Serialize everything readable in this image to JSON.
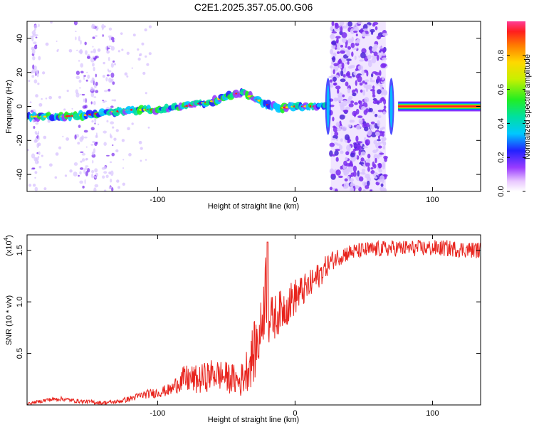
{
  "title": "C2E1.2025.357.05.00.G06",
  "colors": {
    "snr_line": "#e8231c",
    "noise": "#7b2cf0",
    "noise_light": "#d9c4ff"
  },
  "chart_data": [
    {
      "type": "heatmap",
      "name": "spectrogram",
      "xlabel": "Height of straight line (km)",
      "ylabel": "Frequency (Hz)",
      "xlim": [
        -195,
        135
      ],
      "ylim": [
        -50,
        50
      ],
      "x_ticks": [
        -100,
        0,
        100
      ],
      "x_tick_labels": [
        "-100",
        "0",
        "100"
      ],
      "y_ticks": [
        -40,
        -20,
        0,
        20,
        40
      ],
      "y_tick_labels": [
        "-40",
        "-20",
        "0",
        "20",
        "40"
      ],
      "colorbar": {
        "label": "Normalized spectral amplitude",
        "range": [
          0.0,
          1.0
        ],
        "ticks": [
          0.0,
          0.2,
          0.4,
          0.6,
          0.8
        ],
        "tick_labels": [
          "0.0",
          "0.2",
          "0.4",
          "0.6",
          "0.8"
        ],
        "colormap": "rainbow"
      },
      "ridge": [
        {
          "x": -195,
          "y": -6
        },
        {
          "x": -170,
          "y": -6
        },
        {
          "x": -150,
          "y": -5
        },
        {
          "x": -130,
          "y": -3
        },
        {
          "x": -120,
          "y": -2
        },
        {
          "x": -100,
          "y": -2
        },
        {
          "x": -80,
          "y": 0
        },
        {
          "x": -60,
          "y": 3
        },
        {
          "x": -45,
          "y": 7
        },
        {
          "x": -38,
          "y": 8
        },
        {
          "x": -30,
          "y": 5
        },
        {
          "x": -20,
          "y": 1
        },
        {
          "x": -10,
          "y": -1
        },
        {
          "x": 0,
          "y": 0
        },
        {
          "x": 10,
          "y": 0
        },
        {
          "x": 20,
          "y": 0
        },
        {
          "x": 70,
          "y": 0
        },
        {
          "x": 135,
          "y": 0
        }
      ],
      "strong_segment_x": [
        75,
        135
      ],
      "noise_band_x": [
        26,
        66
      ],
      "edge_spikes_x": [
        24,
        70
      ]
    },
    {
      "type": "line",
      "name": "snr",
      "xlabel": "Height of straight line (km)",
      "ylabel": "SNR (10 * v/v)",
      "multiplier_label": "(x10",
      "multiplier_exp": "4",
      "xlim": [
        -195,
        135
      ],
      "ylim": [
        0.0,
        1.65
      ],
      "x_ticks": [
        -100,
        0,
        100
      ],
      "x_tick_labels": [
        "-100",
        "0",
        "100"
      ],
      "y_ticks": [
        0.5,
        1.0,
        1.5
      ],
      "y_tick_labels": [
        "0.5",
        "1.0",
        "1.5"
      ],
      "series": [
        {
          "x": [
            -195,
            -180,
            -170,
            -160,
            -150,
            -140,
            -130,
            -120,
            -110,
            -100,
            -90,
            -85,
            -80,
            -75,
            -70,
            -65,
            -60,
            -55,
            -50,
            -45,
            -40,
            -35,
            -30,
            -25,
            -21,
            -20,
            -15,
            -10,
            -5,
            0,
            5,
            10,
            15,
            20,
            25,
            30,
            35,
            40,
            50,
            60,
            70,
            80,
            90,
            100,
            110,
            120,
            135
          ],
          "y": [
            0.01,
            0.05,
            0.06,
            0.04,
            0.03,
            0.02,
            0.03,
            0.06,
            0.1,
            0.12,
            0.15,
            0.22,
            0.25,
            0.25,
            0.24,
            0.27,
            0.3,
            0.29,
            0.27,
            0.25,
            0.22,
            0.35,
            0.5,
            0.7,
            1.2,
            0.8,
            0.85,
            0.92,
            0.98,
            1.05,
            1.1,
            1.15,
            1.22,
            1.3,
            1.38,
            1.43,
            1.46,
            1.48,
            1.5,
            1.51,
            1.52,
            1.52,
            1.52,
            1.52,
            1.52,
            1.51,
            1.5
          ],
          "noise_amp": [
            0.01,
            0.02,
            0.02,
            0.02,
            0.02,
            0.02,
            0.02,
            0.03,
            0.04,
            0.05,
            0.06,
            0.1,
            0.14,
            0.14,
            0.14,
            0.15,
            0.15,
            0.15,
            0.15,
            0.15,
            0.15,
            0.22,
            0.3,
            0.3,
            0.4,
            0.25,
            0.22,
            0.2,
            0.2,
            0.18,
            0.16,
            0.15,
            0.14,
            0.12,
            0.1,
            0.09,
            0.09,
            0.08,
            0.08,
            0.08,
            0.08,
            0.08,
            0.08,
            0.08,
            0.08,
            0.08,
            0.08
          ]
        }
      ]
    }
  ]
}
